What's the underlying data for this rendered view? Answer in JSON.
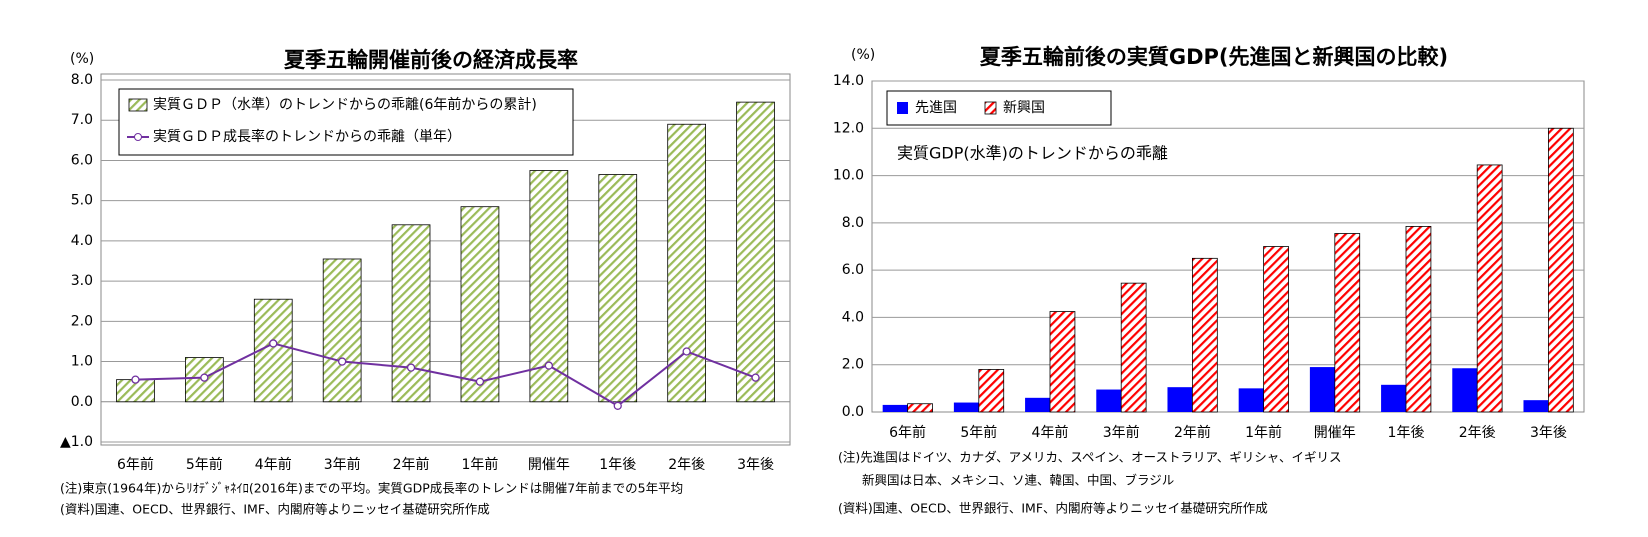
{
  "chart_data": [
    {
      "type": "bar",
      "title": "夏季五輪開催前後の経済成長率",
      "unit": "(%)",
      "categories": [
        "6年前",
        "5年前",
        "4年前",
        "3年前",
        "2年前",
        "1年前",
        "開催年",
        "1年後",
        "2年後",
        "3年後"
      ],
      "series": [
        {
          "name": "実質ＧＤＰ（水準）のトレンドからの乖離(6年前からの累計)",
          "type": "bar",
          "pattern": "hatch",
          "color": "#9bbb59",
          "values": [
            0.55,
            1.1,
            2.55,
            3.55,
            4.4,
            4.85,
            5.75,
            5.65,
            6.9,
            7.45
          ]
        },
        {
          "name": "実質ＧＤＰ成長率のトレンドからの乖離（単年）",
          "type": "line",
          "color": "#7030a0",
          "values": [
            0.55,
            0.6,
            1.45,
            1.0,
            0.85,
            0.5,
            0.9,
            -0.1,
            1.25,
            0.6
          ]
        }
      ],
      "ylim": [
        -1,
        8
      ],
      "yticks": [
        {
          "value": -1,
          "label": "▲1.0"
        },
        {
          "value": 0,
          "label": "0.0"
        },
        {
          "value": 1,
          "label": "1.0"
        },
        {
          "value": 2,
          "label": "2.0"
        },
        {
          "value": 3,
          "label": "3.0"
        },
        {
          "value": 4,
          "label": "4.0"
        },
        {
          "value": 5,
          "label": "5.0"
        },
        {
          "value": 6,
          "label": "6.0"
        },
        {
          "value": 7,
          "label": "7.0"
        },
        {
          "value": 8,
          "label": "8.0"
        }
      ],
      "grid": true,
      "legend": "top-left",
      "notes": [
        "(注)東京(1964年)からﾘｵﾃﾞｼﾞｬﾈｲﾛ(2016年)までの平均。実質GDP成長率のトレンドは開催7年前までの5年平均",
        "(資料)国連、OECD、世界銀行、IMF、内閣府等よりニッセイ基礎研究所作成"
      ]
    },
    {
      "type": "bar",
      "title": "夏季五輪前後の実質GDP(先進国と新興国の比較)",
      "unit": "(%)",
      "annotation": "実質GDP(水準)のトレンドからの乖離",
      "categories": [
        "6年前",
        "5年前",
        "4年前",
        "3年前",
        "2年前",
        "1年前",
        "開催年",
        "1年後",
        "2年後",
        "3年後"
      ],
      "series": [
        {
          "name": "先進国",
          "type": "bar",
          "pattern": "solid",
          "color": "#0000ff",
          "values": [
            0.3,
            0.4,
            0.6,
            0.95,
            1.05,
            1.0,
            1.9,
            1.15,
            1.85,
            0.5
          ]
        },
        {
          "name": "新興国",
          "type": "bar",
          "pattern": "hatch",
          "color": "#ff0000",
          "values": [
            0.35,
            1.8,
            4.25,
            5.45,
            6.5,
            7.0,
            7.55,
            7.85,
            10.45,
            12.0
          ]
        }
      ],
      "ylim": [
        0,
        14
      ],
      "yticks": [
        {
          "value": 0,
          "label": "0.0"
        },
        {
          "value": 2,
          "label": "2.0"
        },
        {
          "value": 4,
          "label": "4.0"
        },
        {
          "value": 6,
          "label": "6.0"
        },
        {
          "value": 8,
          "label": "8.0"
        },
        {
          "value": 10,
          "label": "10.0"
        },
        {
          "value": 12,
          "label": "12.0"
        },
        {
          "value": 14,
          "label": "14.0"
        }
      ],
      "grid": true,
      "legend": "top-left",
      "notes": [
        "(注)先進国はドイツ、カナダ、アメリカ、スペイン、オーストラリア、ギリシャ、イギリス",
        "新興国は日本、メキシコ、ソ連、韓国、中国、ブラジル",
        "(資料)国連、OECD、世界銀行、IMF、内閣府等よりニッセイ基礎研究所作成"
      ]
    }
  ]
}
